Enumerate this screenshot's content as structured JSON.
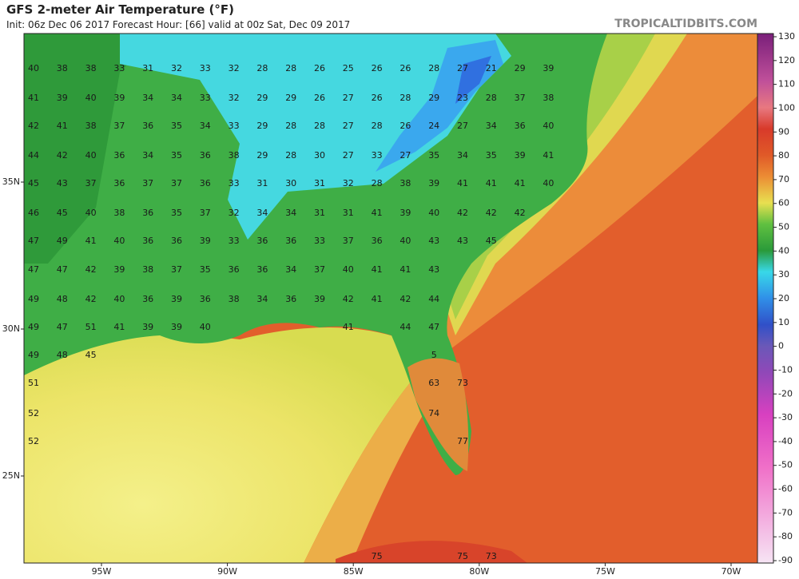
{
  "header": {
    "title": "GFS 2-meter Air Temperature (°F)",
    "subtitle": "Init: 06z Dec 06 2017   Forecast Hour: [66]   valid at 00z Sat, Dec 09 2017",
    "credit": "TROPICALTIDBITS.COM"
  },
  "colorbar": {
    "ticks": [
      130,
      120,
      110,
      100,
      90,
      80,
      70,
      60,
      50,
      40,
      30,
      20,
      10,
      0,
      -10,
      -20,
      -30,
      -40,
      -50,
      -60,
      -70,
      -80,
      -90
    ]
  },
  "axes": {
    "longitudes": [
      "95W",
      "90W",
      "85W",
      "80W",
      "75W",
      "70W"
    ],
    "latitudes": [
      "35N",
      "30N",
      "25N"
    ]
  },
  "stations": {
    "rows": [
      [
        40,
        38,
        38,
        33,
        31,
        32,
        33,
        32,
        28,
        28,
        26,
        25,
        26,
        26,
        28,
        27,
        21,
        29,
        39
      ],
      [
        41,
        39,
        40,
        39,
        34,
        34,
        33,
        32,
        29,
        29,
        26,
        27,
        26,
        28,
        29,
        23,
        28,
        37,
        38
      ],
      [
        42,
        41,
        38,
        37,
        36,
        35,
        34,
        33,
        29,
        28,
        28,
        27,
        28,
        26,
        24,
        27,
        34,
        36,
        40
      ],
      [
        44,
        42,
        40,
        36,
        34,
        35,
        36,
        38,
        29,
        28,
        30,
        27,
        33,
        27,
        35,
        34,
        35,
        39,
        41
      ],
      [
        45,
        43,
        37,
        36,
        37,
        37,
        36,
        33,
        31,
        30,
        31,
        32,
        28,
        38,
        39,
        41,
        41,
        41,
        40
      ],
      [
        46,
        45,
        40,
        38,
        36,
        35,
        37,
        32,
        34,
        34,
        31,
        31,
        41,
        39,
        40,
        42,
        42,
        42
      ],
      [
        47,
        49,
        41,
        40,
        36,
        36,
        39,
        33,
        36,
        36,
        33,
        37,
        36,
        40,
        43,
        43,
        45
      ],
      [
        47,
        47,
        42,
        39,
        38,
        37,
        35,
        36,
        36,
        34,
        37,
        40,
        41,
        41,
        43
      ],
      [
        49,
        48,
        42,
        40,
        36,
        39,
        36,
        38,
        34,
        36,
        39,
        42,
        41,
        42,
        44
      ],
      [
        49,
        47,
        51,
        41,
        39,
        39,
        40,
        null,
        null,
        null,
        null,
        41,
        null,
        44,
        47
      ],
      [
        49,
        48,
        45,
        null,
        null,
        null,
        null,
        null,
        null,
        null,
        null,
        null,
        null,
        null,
        5
      ],
      [
        51,
        null,
        null,
        null,
        null,
        null,
        null,
        null,
        null,
        null,
        null,
        null,
        null,
        null,
        63,
        73
      ],
      [
        52,
        null,
        null,
        null,
        null,
        null,
        null,
        null,
        null,
        null,
        null,
        null,
        null,
        null,
        74
      ],
      [
        52,
        null,
        null,
        null,
        null,
        null,
        null,
        null,
        null,
        null,
        null,
        null,
        null,
        null,
        null,
        77
      ],
      [
        null,
        null,
        null,
        null,
        null,
        null,
        null,
        null,
        null,
        null,
        null,
        null,
        75,
        null,
        null,
        75,
        73
      ]
    ]
  }
}
